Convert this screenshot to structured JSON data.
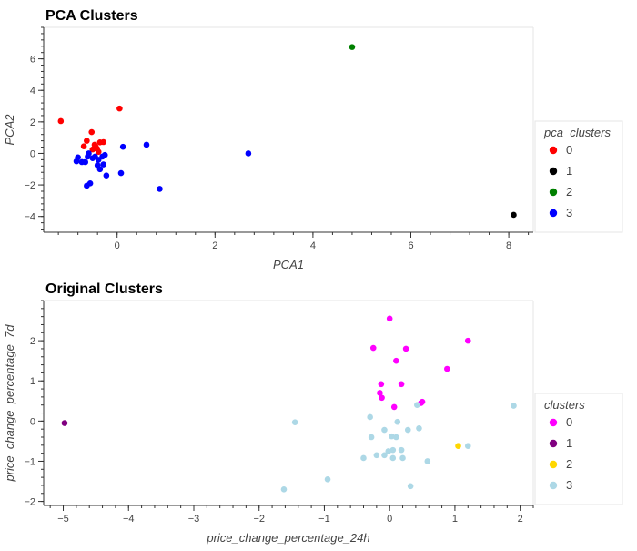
{
  "chart_data": [
    {
      "type": "scatter",
      "title": "PCA Clusters",
      "xlabel": "PCA1",
      "ylabel": "PCA2",
      "xlim": [
        -1.5,
        8.5
      ],
      "ylim": [
        -5,
        8
      ],
      "xticks": [
        0,
        2,
        4,
        6,
        8
      ],
      "yticks": [
        -4,
        -2,
        0,
        2,
        4,
        6
      ],
      "grid": false,
      "legend_title": "pca_clusters",
      "legend_position": "right",
      "series": [
        {
          "name": "0",
          "color": "#ff0000",
          "points": [
            [
              -1.15,
              2.05
            ],
            [
              0.05,
              2.85
            ],
            [
              -0.52,
              1.35
            ],
            [
              -0.35,
              0.7
            ],
            [
              -0.28,
              0.72
            ],
            [
              -0.62,
              0.8
            ],
            [
              -0.68,
              0.45
            ],
            [
              -0.46,
              0.55
            ],
            [
              -0.41,
              0.3
            ],
            [
              -0.38,
              0.1
            ],
            [
              -0.5,
              0.25
            ],
            [
              -0.44,
              0.45
            ]
          ]
        },
        {
          "name": "1",
          "color": "#000000",
          "points": [
            [
              8.1,
              -3.9
            ]
          ]
        },
        {
          "name": "2",
          "color": "#008000",
          "points": [
            [
              4.8,
              6.75
            ]
          ]
        },
        {
          "name": "3",
          "color": "#0000ff",
          "points": [
            [
              -0.8,
              -0.25
            ],
            [
              -0.83,
              -0.5
            ],
            [
              -0.6,
              -0.2
            ],
            [
              -0.5,
              -0.3
            ],
            [
              -0.45,
              -0.2
            ],
            [
              -0.38,
              -0.4
            ],
            [
              -0.3,
              -0.2
            ],
            [
              -0.25,
              -0.1
            ],
            [
              -0.4,
              -0.75
            ],
            [
              -0.65,
              -0.55
            ],
            [
              -0.35,
              -1.0
            ],
            [
              -0.28,
              -0.7
            ],
            [
              -0.22,
              -1.4
            ],
            [
              -0.55,
              -1.9
            ],
            [
              -0.62,
              -2.05
            ],
            [
              -0.72,
              -0.55
            ],
            [
              0.12,
              0.42
            ],
            [
              0.6,
              0.55
            ],
            [
              0.08,
              -1.25
            ],
            [
              0.87,
              -2.25
            ],
            [
              2.68,
              0.0
            ],
            [
              -0.58,
              0.0
            ]
          ]
        }
      ]
    },
    {
      "type": "scatter",
      "title": "Original Clusters",
      "xlabel": "price_change_percentage_24h",
      "ylabel": "price_change_percentage_7d",
      "xlim": [
        -5.3,
        2.2
      ],
      "ylim": [
        -2.1,
        3.0
      ],
      "xticks": [
        -5,
        -4,
        -3,
        -2,
        -1,
        0,
        1,
        2
      ],
      "yticks": [
        -2,
        -1,
        0,
        1,
        2
      ],
      "grid": false,
      "legend_title": "clusters",
      "legend_position": "right",
      "series": [
        {
          "name": "0",
          "color": "#ff00ff",
          "points": [
            [
              0.0,
              2.55
            ],
            [
              -0.25,
              1.82
            ],
            [
              0.25,
              1.8
            ],
            [
              0.1,
              1.5
            ],
            [
              1.2,
              2.0
            ],
            [
              0.88,
              1.3
            ],
            [
              -0.13,
              0.92
            ],
            [
              0.18,
              0.92
            ],
            [
              -0.15,
              0.7
            ],
            [
              -0.12,
              0.58
            ],
            [
              0.5,
              0.48
            ],
            [
              0.48,
              0.45
            ],
            [
              0.07,
              0.35
            ]
          ]
        },
        {
          "name": "1",
          "color": "#800080",
          "points": [
            [
              -4.98,
              -0.05
            ]
          ]
        },
        {
          "name": "2",
          "color": "#ffd700",
          "points": [
            [
              1.05,
              -0.62
            ]
          ]
        },
        {
          "name": "3",
          "color": "#add8e6",
          "points": [
            [
              1.9,
              0.38
            ],
            [
              0.42,
              0.4
            ],
            [
              -1.45,
              -0.03
            ],
            [
              -0.3,
              0.1
            ],
            [
              0.12,
              -0.02
            ],
            [
              -0.08,
              -0.22
            ],
            [
              0.28,
              -0.22
            ],
            [
              0.45,
              -0.18
            ],
            [
              -0.28,
              -0.4
            ],
            [
              0.1,
              -0.4
            ],
            [
              -0.02,
              -0.75
            ],
            [
              0.05,
              -0.72
            ],
            [
              0.18,
              -0.72
            ],
            [
              -0.08,
              -0.85
            ],
            [
              0.05,
              -0.92
            ],
            [
              -0.2,
              -0.85
            ],
            [
              -0.4,
              -0.92
            ],
            [
              0.2,
              -0.92
            ],
            [
              0.58,
              -1.0
            ],
            [
              1.2,
              -0.62
            ],
            [
              0.32,
              -1.62
            ],
            [
              -0.95,
              -1.45
            ],
            [
              -1.62,
              -1.7
            ],
            [
              0.03,
              -0.38
            ]
          ]
        }
      ]
    }
  ]
}
